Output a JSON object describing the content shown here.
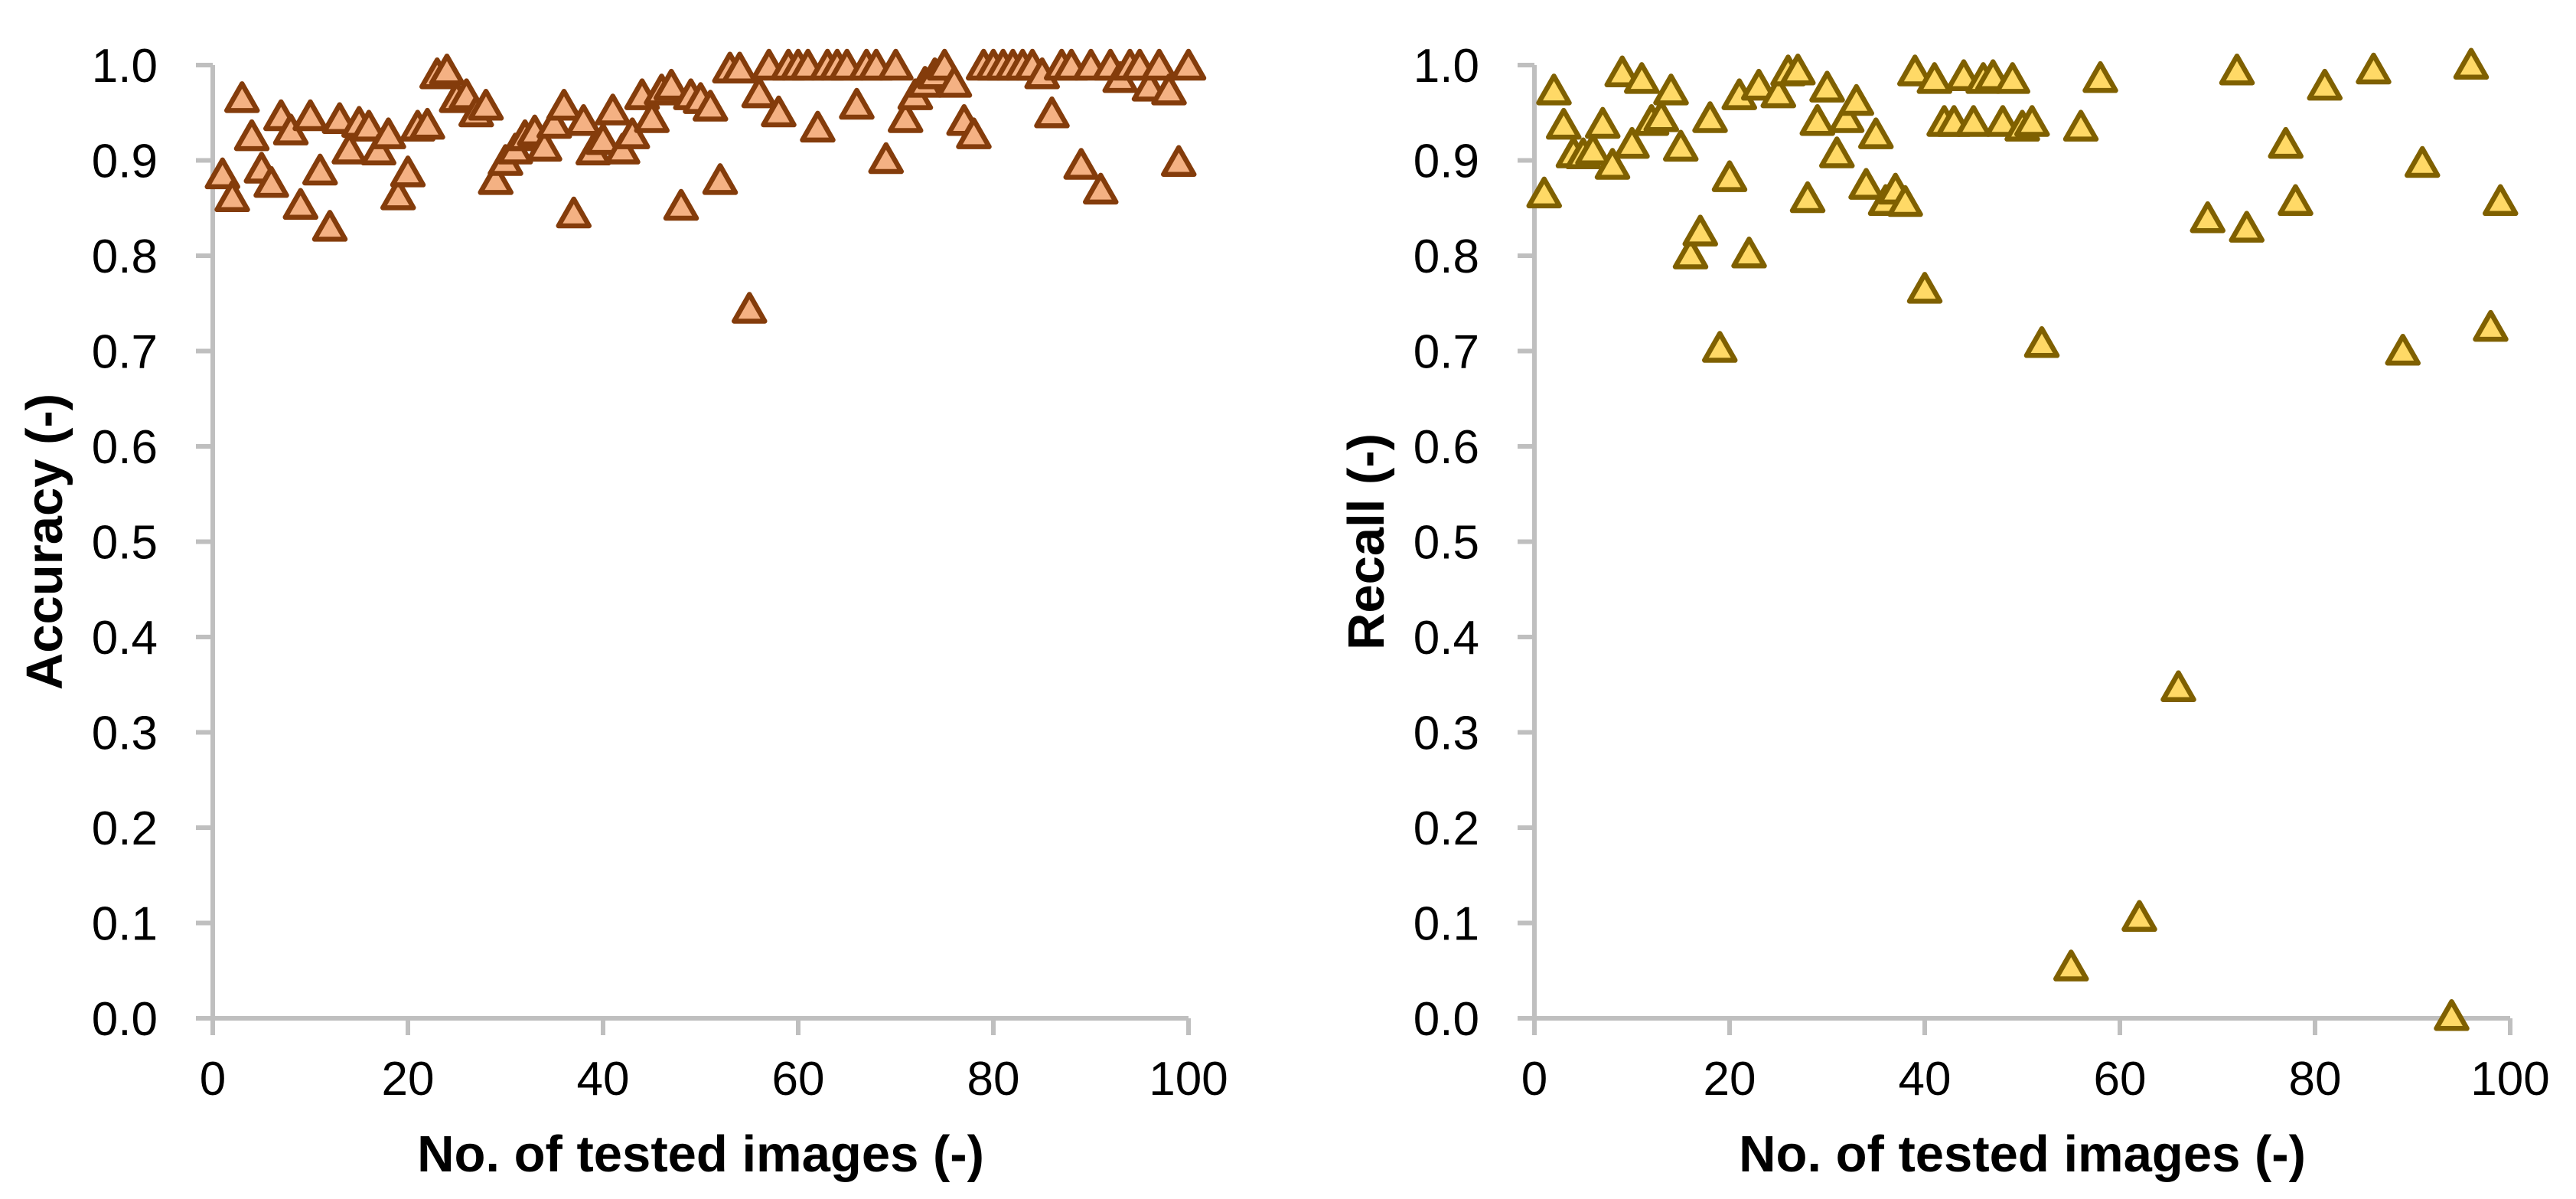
{
  "figure": {
    "background": "#FFFFFF",
    "text_color": "#000000",
    "axis_color": "#BFBFBF"
  },
  "chart_data": [
    {
      "type": "scatter",
      "title": "",
      "xlabel": "No. of tested images (-)",
      "ylabel": "Accuracy (-)",
      "xlim": [
        0,
        100
      ],
      "ylim": [
        0.0,
        1.0
      ],
      "x_ticks": [
        "0",
        "20",
        "40",
        "60",
        "80",
        "100"
      ],
      "x_tick_values": [
        0,
        20,
        40,
        60,
        80,
        100
      ],
      "y_ticks": [
        "0.0",
        "0.1",
        "0.2",
        "0.3",
        "0.4",
        "0.5",
        "0.6",
        "0.7",
        "0.8",
        "0.9",
        "1.0"
      ],
      "y_tick_values": [
        0.0,
        0.1,
        0.2,
        0.3,
        0.4,
        0.5,
        0.6,
        0.7,
        0.8,
        0.9,
        1.0
      ],
      "grid": false,
      "legend": null,
      "marker": {
        "shape": "triangle-up",
        "fill": "#F4B183",
        "stroke": "#843C0B"
      },
      "points": [
        [
          1,
          0.885
        ],
        [
          2,
          0.861
        ],
        [
          3,
          0.965
        ],
        [
          4,
          0.925
        ],
        [
          5,
          0.891
        ],
        [
          6,
          0.876
        ],
        [
          7,
          0.946
        ],
        [
          8,
          0.931
        ],
        [
          9,
          0.853
        ],
        [
          10,
          0.946
        ],
        [
          11,
          0.889
        ],
        [
          12,
          0.83
        ],
        [
          13,
          0.943
        ],
        [
          14,
          0.911
        ],
        [
          15,
          0.939
        ],
        [
          16,
          0.935
        ],
        [
          17,
          0.91
        ],
        [
          18,
          0.927
        ],
        [
          19,
          0.863
        ],
        [
          20,
          0.887
        ],
        [
          21,
          0.935
        ],
        [
          22,
          0.937
        ],
        [
          23,
          0.99
        ],
        [
          24,
          0.994
        ],
        [
          25,
          0.965
        ],
        [
          26,
          0.968
        ],
        [
          27,
          0.95
        ],
        [
          28,
          0.957
        ],
        [
          29,
          0.879
        ],
        [
          30,
          0.899
        ],
        [
          31,
          0.911
        ],
        [
          32,
          0.925
        ],
        [
          33,
          0.93
        ],
        [
          34,
          0.914
        ],
        [
          35,
          0.938
        ],
        [
          36,
          0.957
        ],
        [
          37,
          0.844
        ],
        [
          38,
          0.941
        ],
        [
          39,
          0.91
        ],
        [
          40,
          0.921
        ],
        [
          41,
          0.952
        ],
        [
          42,
          0.911
        ],
        [
          43,
          0.927
        ],
        [
          44,
          0.968
        ],
        [
          45,
          0.944
        ],
        [
          46,
          0.973
        ],
        [
          47,
          0.978
        ],
        [
          48,
          0.852
        ],
        [
          49,
          0.968
        ],
        [
          50,
          0.964
        ],
        [
          51,
          0.956
        ],
        [
          52,
          0.879
        ],
        [
          53,
          0.996
        ],
        [
          54,
          0.996
        ],
        [
          55,
          0.744
        ],
        [
          56,
          0.97
        ],
        [
          57,
          0.999
        ],
        [
          58,
          0.95
        ],
        [
          59,
          0.999
        ],
        [
          60,
          0.999
        ],
        [
          61,
          0.999
        ],
        [
          62,
          0.934
        ],
        [
          63,
          0.999
        ],
        [
          64,
          0.999
        ],
        [
          65,
          0.999
        ],
        [
          66,
          0.958
        ],
        [
          67,
          0.999
        ],
        [
          68,
          0.999
        ],
        [
          69,
          0.901
        ],
        [
          70,
          0.999
        ],
        [
          71,
          0.944
        ],
        [
          72,
          0.968
        ],
        [
          73,
          0.981
        ],
        [
          74,
          0.99
        ],
        [
          75,
          0.999
        ],
        [
          76,
          0.981
        ],
        [
          77,
          0.941
        ],
        [
          78,
          0.927
        ],
        [
          79,
          0.999
        ],
        [
          80,
          0.999
        ],
        [
          81,
          0.999
        ],
        [
          82,
          0.999
        ],
        [
          83,
          0.999
        ],
        [
          84,
          0.999
        ],
        [
          85,
          0.99
        ],
        [
          86,
          0.949
        ],
        [
          87,
          0.999
        ],
        [
          88,
          0.999
        ],
        [
          89,
          0.895
        ],
        [
          90,
          0.999
        ],
        [
          91,
          0.869
        ],
        [
          92,
          0.999
        ],
        [
          93,
          0.986
        ],
        [
          94,
          0.999
        ],
        [
          95,
          0.999
        ],
        [
          96,
          0.977
        ],
        [
          97,
          0.999
        ],
        [
          98,
          0.973
        ],
        [
          99,
          0.898
        ],
        [
          100,
          0.999
        ]
      ]
    },
    {
      "type": "scatter",
      "title": "",
      "xlabel": "No. of tested images (-)",
      "ylabel": "Recall (-)",
      "xlim": [
        0,
        100
      ],
      "ylim": [
        0.0,
        1.0
      ],
      "x_ticks": [
        "0",
        "20",
        "40",
        "60",
        "80",
        "100"
      ],
      "x_tick_values": [
        0,
        20,
        40,
        60,
        80,
        100
      ],
      "y_ticks": [
        "0.0",
        "0.1",
        "0.2",
        "0.3",
        "0.4",
        "0.5",
        "0.6",
        "0.7",
        "0.8",
        "0.9",
        "1.0"
      ],
      "y_tick_values": [
        0.0,
        0.1,
        0.2,
        0.3,
        0.4,
        0.5,
        0.6,
        0.7,
        0.8,
        0.9,
        1.0
      ],
      "grid": false,
      "legend": null,
      "marker": {
        "shape": "triangle-up",
        "fill": "#FFD966",
        "stroke": "#7F6000"
      },
      "points": [
        [
          1,
          0.865
        ],
        [
          2,
          0.973
        ],
        [
          3,
          0.937
        ],
        [
          4,
          0.907
        ],
        [
          5,
          0.906
        ],
        [
          6,
          0.91
        ],
        [
          7,
          0.938
        ],
        [
          8,
          0.895
        ],
        [
          9,
          0.992
        ],
        [
          10,
          0.917
        ],
        [
          11,
          0.985
        ],
        [
          12,
          0.941
        ],
        [
          13,
          0.945
        ],
        [
          14,
          0.973
        ],
        [
          15,
          0.914
        ],
        [
          16,
          0.801
        ],
        [
          17,
          0.825
        ],
        [
          18,
          0.944
        ],
        [
          19,
          0.703
        ],
        [
          20,
          0.882
        ],
        [
          21,
          0.968
        ],
        [
          22,
          0.802
        ],
        [
          23,
          0.978
        ],
        [
          25,
          0.97
        ],
        [
          26,
          0.993
        ],
        [
          27,
          0.994
        ],
        [
          28,
          0.86
        ],
        [
          29,
          0.941
        ],
        [
          30,
          0.976
        ],
        [
          31,
          0.907
        ],
        [
          32,
          0.944
        ],
        [
          33,
          0.962
        ],
        [
          34,
          0.874
        ],
        [
          35,
          0.927
        ],
        [
          36,
          0.857
        ],
        [
          37,
          0.869
        ],
        [
          38,
          0.856
        ],
        [
          39,
          0.993
        ],
        [
          40,
          0.765
        ],
        [
          41,
          0.985
        ],
        [
          42,
          0.94
        ],
        [
          43,
          0.94
        ],
        [
          44,
          0.988
        ],
        [
          45,
          0.94
        ],
        [
          46,
          0.985
        ],
        [
          47,
          0.988
        ],
        [
          48,
          0.94
        ],
        [
          49,
          0.985
        ],
        [
          50,
          0.935
        ],
        [
          51,
          0.94
        ],
        [
          52,
          0.708
        ],
        [
          55,
          0.054
        ],
        [
          56,
          0.935
        ],
        [
          58,
          0.986
        ],
        [
          62,
          0.106
        ],
        [
          66,
          0.347
        ],
        [
          69,
          0.839
        ],
        [
          72,
          0.994
        ],
        [
          73,
          0.829
        ],
        [
          77,
          0.917
        ],
        [
          78,
          0.857
        ],
        [
          81,
          0.978
        ],
        [
          86,
          0.995
        ],
        [
          89,
          0.7
        ],
        [
          91,
          0.897
        ],
        [
          94,
          0.002
        ],
        [
          96,
          1.0
        ],
        [
          98,
          0.725
        ],
        [
          99,
          0.857
        ]
      ]
    }
  ]
}
